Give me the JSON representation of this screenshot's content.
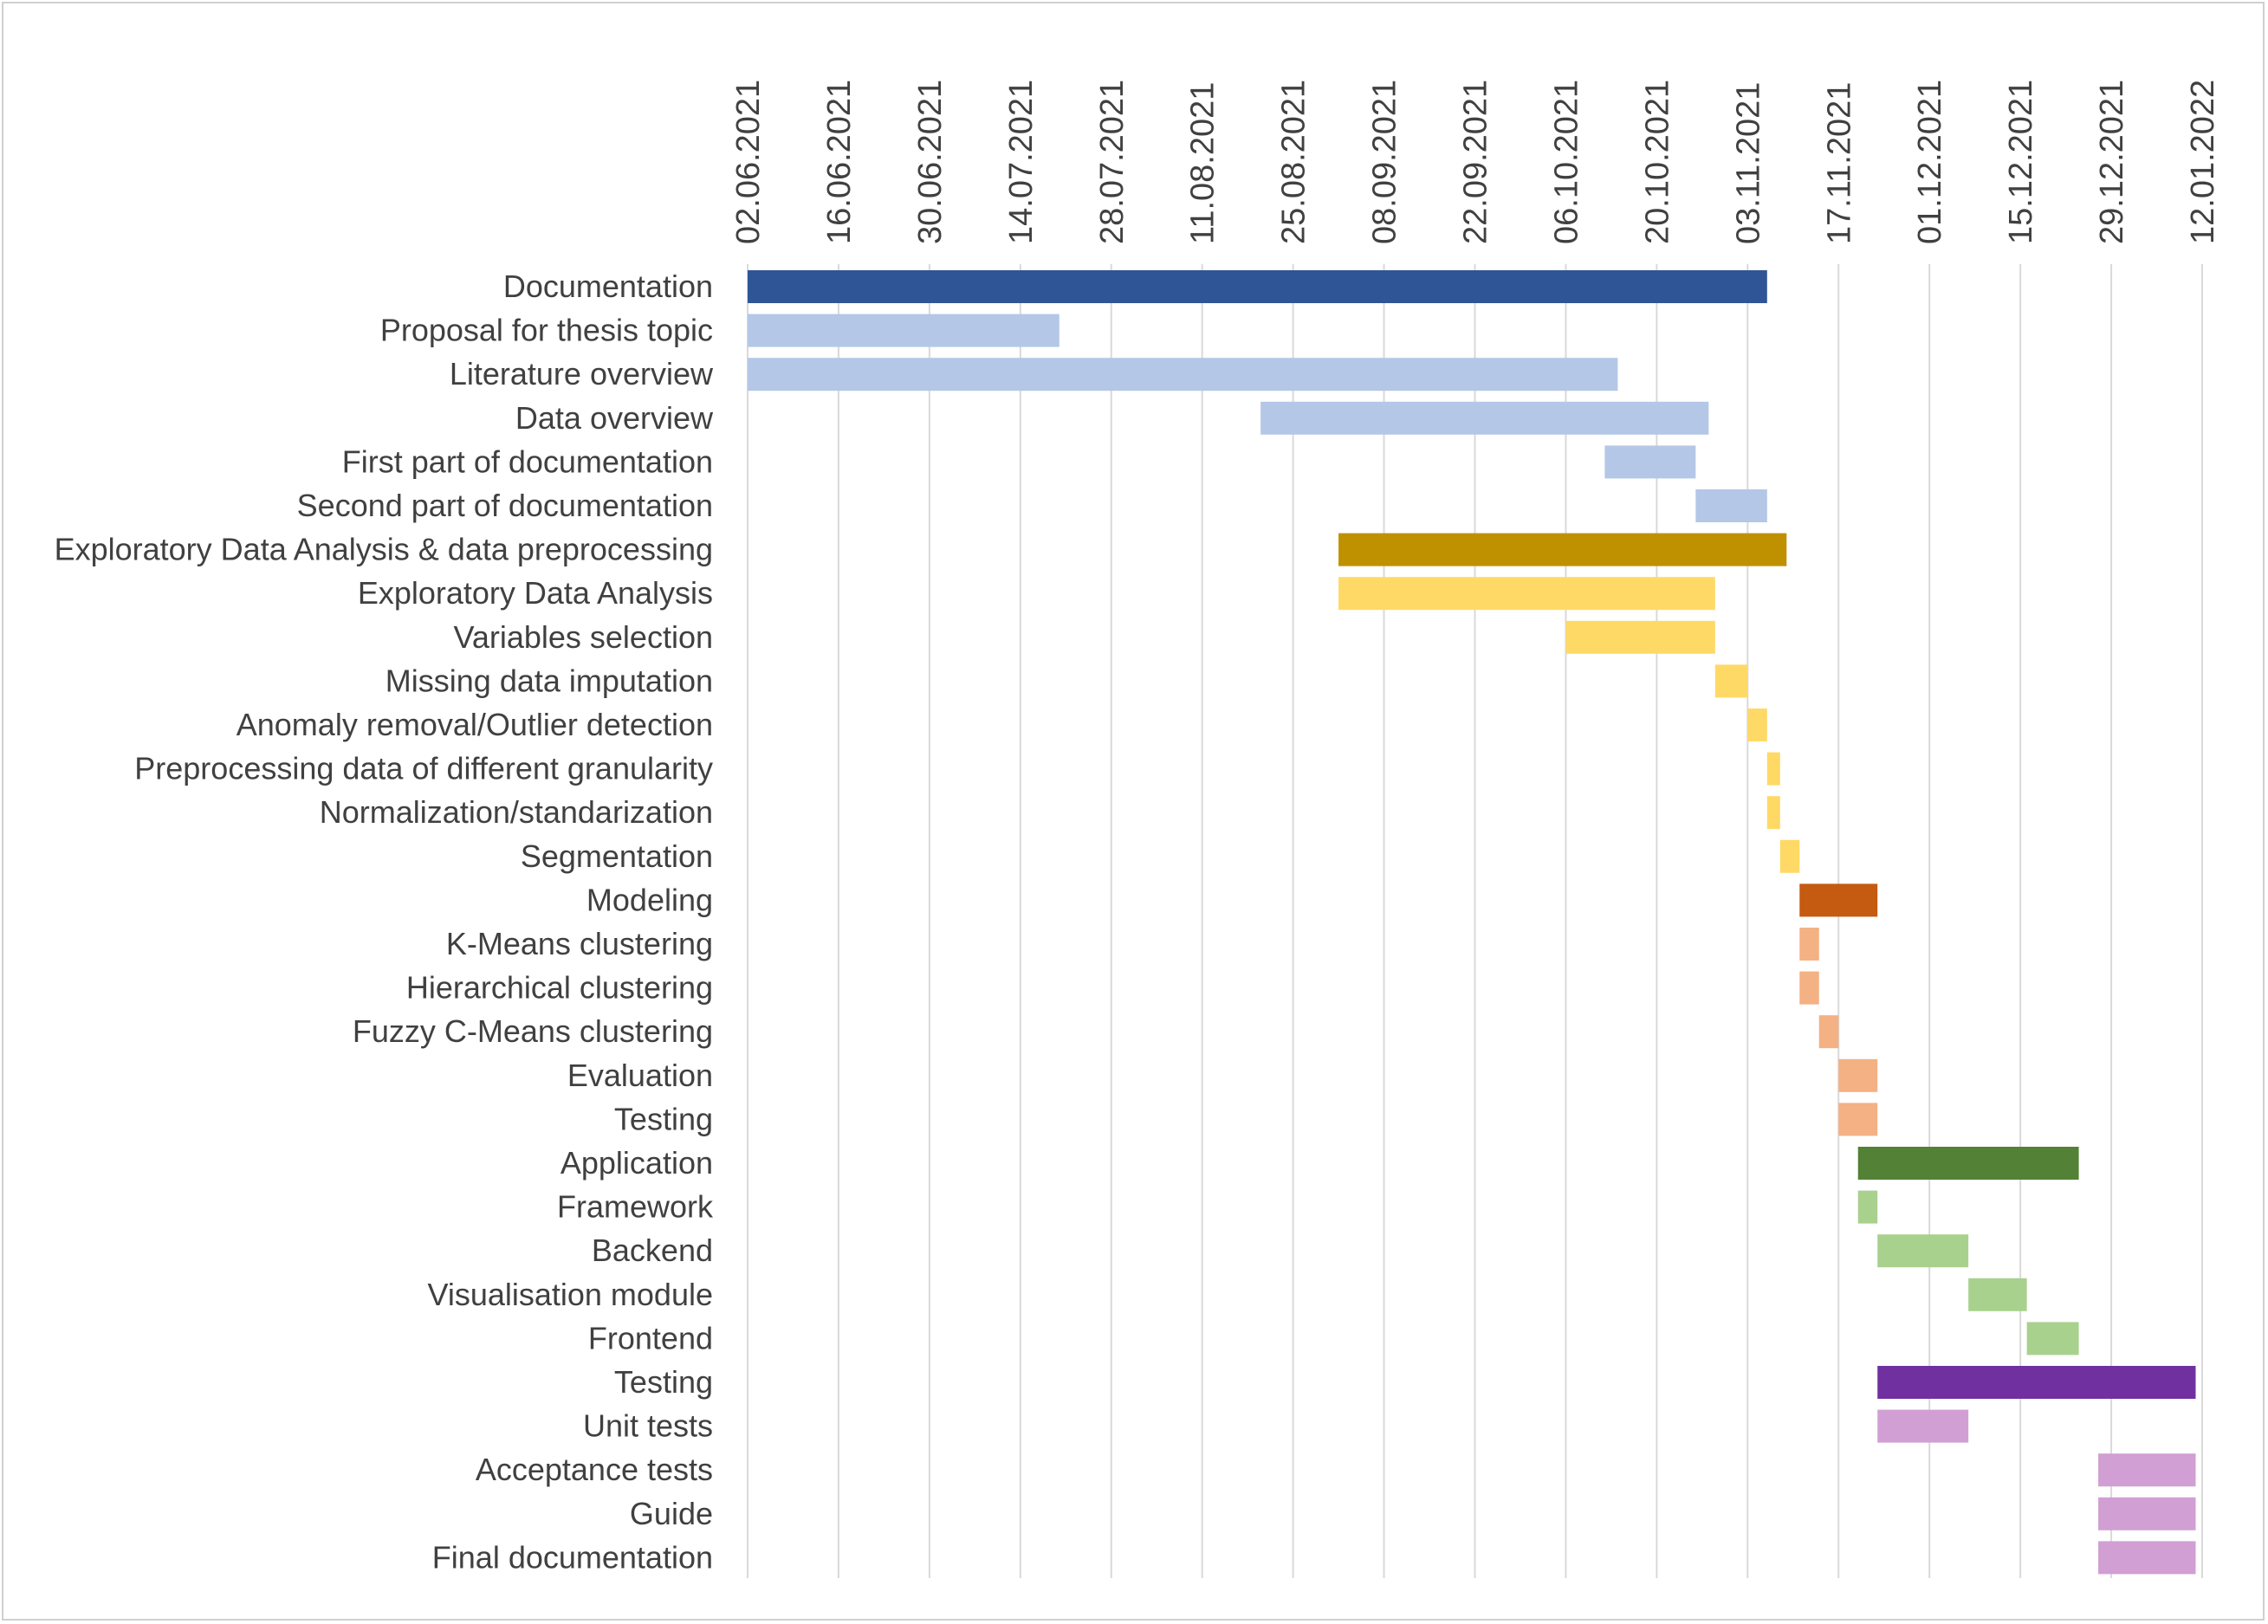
{
  "chart_data": {
    "type": "bar",
    "subtype": "gantt",
    "title": "",
    "xlabel": "",
    "ylabel": "",
    "x_axis": {
      "position": "top",
      "tick_labels": [
        "02.06.2021",
        "16.06.2021",
        "30.06.2021",
        "14.07.2021",
        "28.07.2021",
        "11.08.2021",
        "25.08.2021",
        "08.09.2021",
        "22.09.2021",
        "06.10.2021",
        "20.10.2021",
        "03.11.2021",
        "17.11.2021",
        "01.12.2021",
        "15.12.2021",
        "29.12.2021",
        "12.01.2022"
      ],
      "min": "2021-06-02",
      "max": "2022-01-12",
      "tick_interval_days": 14
    },
    "grid": true,
    "legend": "none",
    "tasks": [
      {
        "name": "Documentation",
        "start": "2021-06-02",
        "end": "2021-11-06",
        "color": "#2F5597"
      },
      {
        "name": "Proposal for thesis topic",
        "start": "2021-06-02",
        "end": "2021-07-20",
        "color": "#B4C7E7"
      },
      {
        "name": "Literature overview",
        "start": "2021-06-02",
        "end": "2021-10-14",
        "color": "#B4C7E7"
      },
      {
        "name": "Data overview",
        "start": "2021-08-20",
        "end": "2021-10-28",
        "color": "#B4C7E7"
      },
      {
        "name": "First part of documentation",
        "start": "2021-10-12",
        "end": "2021-10-26",
        "color": "#B4C7E7"
      },
      {
        "name": "Second part of documentation",
        "start": "2021-10-26",
        "end": "2021-11-06",
        "color": "#B4C7E7"
      },
      {
        "name": "Exploratory Data Analysis & data preprocessing",
        "start": "2021-09-01",
        "end": "2021-11-09",
        "color": "#BF9000"
      },
      {
        "name": "Exploratory Data Analysis",
        "start": "2021-09-01",
        "end": "2021-10-29",
        "color": "#FFD966"
      },
      {
        "name": "Variables selection",
        "start": "2021-10-06",
        "end": "2021-10-29",
        "color": "#FFD966"
      },
      {
        "name": "Missing data imputation",
        "start": "2021-10-29",
        "end": "2021-11-03",
        "color": "#FFD966"
      },
      {
        "name": "Anomaly removal/Outlier detection",
        "start": "2021-11-03",
        "end": "2021-11-06",
        "color": "#FFD966"
      },
      {
        "name": "Preprocessing data of different granularity",
        "start": "2021-11-06",
        "end": "2021-11-08",
        "color": "#FFD966"
      },
      {
        "name": "Normalization/standarization",
        "start": "2021-11-06",
        "end": "2021-11-08",
        "color": "#FFD966"
      },
      {
        "name": "Segmentation",
        "start": "2021-11-08",
        "end": "2021-11-11",
        "color": "#FFD966"
      },
      {
        "name": "Modeling",
        "start": "2021-11-11",
        "end": "2021-11-23",
        "color": "#C55A11"
      },
      {
        "name": "K-Means clustering",
        "start": "2021-11-11",
        "end": "2021-11-14",
        "color": "#F4B183"
      },
      {
        "name": "Hierarchical clustering",
        "start": "2021-11-11",
        "end": "2021-11-14",
        "color": "#F4B183"
      },
      {
        "name": "Fuzzy C-Means clustering",
        "start": "2021-11-14",
        "end": "2021-11-17",
        "color": "#F4B183"
      },
      {
        "name": "Evaluation",
        "start": "2021-11-17",
        "end": "2021-11-23",
        "color": "#F4B183"
      },
      {
        "name": "Testing",
        "start": "2021-11-17",
        "end": "2021-11-23",
        "color": "#F4B183"
      },
      {
        "name": "Application",
        "start": "2021-11-20",
        "end": "2021-12-24",
        "color": "#538135"
      },
      {
        "name": "Framework",
        "start": "2021-11-20",
        "end": "2021-11-23",
        "color": "#A9D18E"
      },
      {
        "name": "Backend",
        "start": "2021-11-23",
        "end": "2021-12-07",
        "color": "#A9D18E"
      },
      {
        "name": "Visualisation module",
        "start": "2021-12-07",
        "end": "2021-12-16",
        "color": "#A9D18E"
      },
      {
        "name": "Frontend",
        "start": "2021-12-16",
        "end": "2021-12-24",
        "color": "#A9D18E"
      },
      {
        "name": "Testing",
        "start": "2021-11-23",
        "end": "2022-01-11",
        "color": "#7030A0"
      },
      {
        "name": "Unit tests",
        "start": "2021-11-23",
        "end": "2021-12-07",
        "color": "#D19FD3"
      },
      {
        "name": "Acceptance tests",
        "start": "2021-12-27",
        "end": "2022-01-11",
        "color": "#D19FD3"
      },
      {
        "name": "Guide",
        "start": "2021-12-27",
        "end": "2022-01-11",
        "color": "#D19FD3"
      },
      {
        "name": "Final documentation",
        "start": "2021-12-27",
        "end": "2022-01-11",
        "color": "#D19FD3"
      }
    ]
  }
}
